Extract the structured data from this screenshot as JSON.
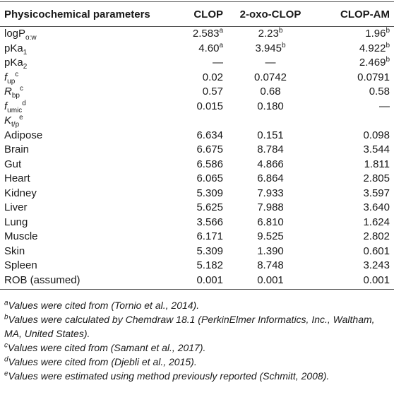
{
  "table": {
    "header": [
      "Physicochemical parameters",
      "CLOP",
      "2-oxo-CLOP",
      "CLOP-AM"
    ],
    "rows": [
      {
        "param": {
          "text": "logP",
          "sub": "o:w"
        },
        "values": [
          {
            "text": "2.583",
            "sup": "a"
          },
          {
            "text": "2.23",
            "sup": "b"
          },
          {
            "text": "1.96",
            "sup": "b"
          }
        ]
      },
      {
        "param": {
          "text": "pKa",
          "sub": "1"
        },
        "values": [
          {
            "text": "4.60",
            "sup": "a"
          },
          {
            "text": "3.945",
            "sup": "b"
          },
          {
            "text": "4.922",
            "sup": "b"
          }
        ]
      },
      {
        "param": {
          "text": "pKa",
          "sub": "2"
        },
        "values": [
          {
            "text": "—"
          },
          {
            "text": "—"
          },
          {
            "text": "2.469",
            "sup": "b"
          }
        ]
      },
      {
        "param": {
          "text": "f",
          "sub": "up",
          "sup": "c",
          "italic": true
        },
        "values": [
          {
            "text": "0.02"
          },
          {
            "text": "0.0742"
          },
          {
            "text": "0.0791"
          }
        ]
      },
      {
        "param": {
          "text": "R",
          "sub": "bp",
          "sup": "c",
          "italic": true
        },
        "values": [
          {
            "text": "0.57"
          },
          {
            "text": "0.68"
          },
          {
            "text": "0.58"
          }
        ]
      },
      {
        "param": {
          "text": "f",
          "sub": "umic",
          "sup": "d",
          "italic": true
        },
        "values": [
          {
            "text": "0.015"
          },
          {
            "text": "0.180"
          },
          {
            "text": "—"
          }
        ]
      },
      {
        "param": {
          "text": "K",
          "sub": "t/p",
          "sup": "e",
          "italic": true
        },
        "values": []
      },
      {
        "param": {
          "text": "Adipose"
        },
        "values": [
          {
            "text": "6.634"
          },
          {
            "text": "0.151"
          },
          {
            "text": "0.098"
          }
        ]
      },
      {
        "param": {
          "text": "Brain"
        },
        "values": [
          {
            "text": "6.675"
          },
          {
            "text": "8.784"
          },
          {
            "text": "3.544"
          }
        ]
      },
      {
        "param": {
          "text": "Gut"
        },
        "values": [
          {
            "text": "6.586"
          },
          {
            "text": "4.866"
          },
          {
            "text": "1.811"
          }
        ]
      },
      {
        "param": {
          "text": "Heart"
        },
        "values": [
          {
            "text": "6.065"
          },
          {
            "text": "6.864"
          },
          {
            "text": "2.805"
          }
        ]
      },
      {
        "param": {
          "text": "Kidney"
        },
        "values": [
          {
            "text": "5.309"
          },
          {
            "text": "7.933"
          },
          {
            "text": "3.597"
          }
        ]
      },
      {
        "param": {
          "text": "Liver"
        },
        "values": [
          {
            "text": "5.625"
          },
          {
            "text": "7.988"
          },
          {
            "text": "3.640"
          }
        ]
      },
      {
        "param": {
          "text": "Lung"
        },
        "values": [
          {
            "text": "3.566"
          },
          {
            "text": "6.810"
          },
          {
            "text": "1.624"
          }
        ]
      },
      {
        "param": {
          "text": "Muscle"
        },
        "values": [
          {
            "text": "6.171"
          },
          {
            "text": "9.525"
          },
          {
            "text": "2.802"
          }
        ]
      },
      {
        "param": {
          "text": "Skin"
        },
        "values": [
          {
            "text": "5.309"
          },
          {
            "text": "1.390"
          },
          {
            "text": "0.601"
          }
        ]
      },
      {
        "param": {
          "text": "Spleen"
        },
        "values": [
          {
            "text": "5.182"
          },
          {
            "text": "8.748"
          },
          {
            "text": "3.243"
          }
        ]
      },
      {
        "param": {
          "text": "ROB (assumed)"
        },
        "values": [
          {
            "text": "0.001"
          },
          {
            "text": "0.001"
          },
          {
            "text": "0.001"
          }
        ]
      }
    ]
  },
  "footnotes": [
    {
      "mark": "a",
      "text": "Values were cited from (Tornio et al., 2014)."
    },
    {
      "mark": "b",
      "text": "Values were calculated by Chemdraw 18.1 (PerkinElmer Informatics, Inc., Waltham, MA, United States)."
    },
    {
      "mark": "c",
      "text": "Values were cited from (Samant et al., 2017)."
    },
    {
      "mark": "d",
      "text": "Values were cited from (Djebli et al., 2015)."
    },
    {
      "mark": "e",
      "text": "Values were estimated using method previously reported (Schmitt, 2008)."
    }
  ]
}
